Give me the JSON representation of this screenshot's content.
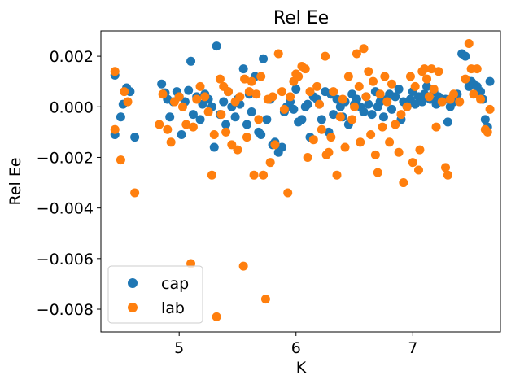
{
  "chart_data": {
    "type": "scatter",
    "title": "Rel Ee",
    "xlabel": "K",
    "ylabel": "Rel Ee",
    "xlim": [
      4.33,
      7.75
    ],
    "ylim": [
      -0.0089,
      0.003
    ],
    "xticks": [
      5,
      6,
      7
    ],
    "yticks": [
      0.002,
      0.0,
      -0.002,
      -0.004,
      -0.006,
      -0.008
    ],
    "xtick_labels": [
      "5",
      "6",
      "7"
    ],
    "ytick_labels": [
      "0.002",
      "0.000",
      "−0.002",
      "−0.004",
      "−0.006",
      "−0.008"
    ],
    "grid": false,
    "legend": "lower-left",
    "series": [
      {
        "name": "cap",
        "color": "#1f77b4",
        "points": [
          [
            4.45,
            0.00125
          ],
          [
            4.45,
            -0.0011
          ],
          [
            4.5,
            -0.0004
          ],
          [
            4.52,
            0.0001
          ],
          [
            4.55,
            0.00075
          ],
          [
            4.58,
            0.0006
          ],
          [
            4.62,
            -0.0012
          ],
          [
            4.85,
            0.0009
          ],
          [
            4.88,
            0.00055
          ],
          [
            4.9,
            0.0003
          ],
          [
            4.92,
            -0.0004
          ],
          [
            4.95,
            0.0002
          ],
          [
            4.98,
            0.0006
          ],
          [
            5.0,
            0.0004
          ],
          [
            5.02,
            -0.0011
          ],
          [
            5.05,
            0.0002
          ],
          [
            5.08,
            0.00065
          ],
          [
            5.1,
            0.0018
          ],
          [
            5.12,
            -0.0003
          ],
          [
            5.15,
            0.0004
          ],
          [
            5.18,
            -0.0005
          ],
          [
            5.2,
            0.0001
          ],
          [
            5.22,
            0.0005
          ],
          [
            5.25,
            0.0003
          ],
          [
            5.28,
            0.0
          ],
          [
            5.3,
            -0.0016
          ],
          [
            5.32,
            0.0024
          ],
          [
            5.35,
            -0.0003
          ],
          [
            5.38,
            0.0002
          ],
          [
            5.4,
            -0.0007
          ],
          [
            5.42,
            0.0006
          ],
          [
            5.45,
            0.0
          ],
          [
            5.48,
            -0.0004
          ],
          [
            5.5,
            0.0003
          ],
          [
            5.52,
            0.0001
          ],
          [
            5.55,
            0.0015
          ],
          [
            5.58,
            -0.0007
          ],
          [
            5.6,
            0.0005
          ],
          [
            5.62,
            -0.0002
          ],
          [
            5.65,
            0.0012
          ],
          [
            5.68,
            -0.001
          ],
          [
            5.7,
            -0.0011
          ],
          [
            5.72,
            0.0019
          ],
          [
            5.75,
            -0.0005
          ],
          [
            5.78,
            0.0003
          ],
          [
            5.8,
            -0.0015
          ],
          [
            5.82,
            -0.0014
          ],
          [
            5.85,
            -0.0018
          ],
          [
            5.88,
            -0.0016
          ],
          [
            5.9,
            -0.0002
          ],
          [
            5.92,
            0.0
          ],
          [
            5.95,
            0.0002
          ],
          [
            5.98,
            -0.0001
          ],
          [
            6.0,
            0.0007
          ],
          [
            6.02,
            -0.0006
          ],
          [
            6.05,
            -0.0005
          ],
          [
            6.08,
            0.0
          ],
          [
            6.1,
            0.0001
          ],
          [
            6.12,
            -0.0012
          ],
          [
            6.15,
            0.0004
          ],
          [
            6.18,
            0.0003
          ],
          [
            6.2,
            0.0001
          ],
          [
            6.22,
            -0.0005
          ],
          [
            6.25,
            0.0006
          ],
          [
            6.28,
            -0.001
          ],
          [
            6.3,
            0.0005
          ],
          [
            6.32,
            -0.0003
          ],
          [
            6.35,
            0.0003
          ],
          [
            6.38,
            0.0
          ],
          [
            6.4,
            -0.0004
          ],
          [
            6.42,
            0.0002
          ],
          [
            6.45,
            -0.0007
          ],
          [
            6.48,
            0.0005
          ],
          [
            6.5,
            0.0001
          ],
          [
            6.52,
            0.0003
          ],
          [
            6.55,
            0.0
          ],
          [
            6.58,
            -0.0002
          ],
          [
            6.6,
            0.0004
          ],
          [
            6.62,
            0.0001
          ],
          [
            6.65,
            -0.0003
          ],
          [
            6.68,
            0.0006
          ],
          [
            6.7,
            0.0
          ],
          [
            6.72,
            0.0002
          ],
          [
            6.75,
            -0.0004
          ],
          [
            6.78,
            0.0003
          ],
          [
            6.8,
            0.0005
          ],
          [
            6.82,
            -0.0001
          ],
          [
            6.85,
            0.0004
          ],
          [
            6.88,
            0.0007
          ],
          [
            6.9,
            -0.0005
          ],
          [
            6.92,
            0.0002
          ],
          [
            6.95,
            0.0
          ],
          [
            6.98,
            0.0003
          ],
          [
            7.0,
            0.0006
          ],
          [
            7.02,
            0.0001
          ],
          [
            7.05,
            0.0004
          ],
          [
            7.08,
            0.0002
          ],
          [
            7.1,
            0.0005
          ],
          [
            7.12,
            0.0008
          ],
          [
            7.15,
            0.0003
          ],
          [
            7.18,
            0.0006
          ],
          [
            7.2,
            0.0001
          ],
          [
            7.22,
            0.0004
          ],
          [
            7.25,
            0.0002
          ],
          [
            7.28,
            0.0003
          ],
          [
            7.3,
            -0.0006
          ],
          [
            7.32,
            0.0
          ],
          [
            7.35,
            0.0002
          ],
          [
            7.38,
            0.0005
          ],
          [
            7.42,
            0.0021
          ],
          [
            7.45,
            0.002
          ],
          [
            7.48,
            0.0008
          ],
          [
            7.5,
            0.001
          ],
          [
            7.52,
            0.0009
          ],
          [
            7.55,
            0.0008
          ],
          [
            7.58,
            0.0006
          ],
          [
            7.6,
            0.0003
          ],
          [
            7.62,
            -0.0005
          ],
          [
            7.64,
            -0.0008
          ],
          [
            7.66,
            0.001
          ]
        ]
      },
      {
        "name": "lab",
        "color": "#ff7f0e",
        "points": [
          [
            4.45,
            0.0014
          ],
          [
            4.45,
            -0.0009
          ],
          [
            4.5,
            -0.0021
          ],
          [
            4.53,
            0.0006
          ],
          [
            4.56,
            0.0002
          ],
          [
            4.62,
            -0.0034
          ],
          [
            4.83,
            -0.0007
          ],
          [
            4.86,
            0.0005
          ],
          [
            4.9,
            -0.0009
          ],
          [
            4.93,
            -0.0014
          ],
          [
            4.96,
            0.0002
          ],
          [
            5.0,
            0.0004
          ],
          [
            5.03,
            0.0
          ],
          [
            5.06,
            -0.0007
          ],
          [
            5.1,
            -0.0062
          ],
          [
            5.12,
            -0.0008
          ],
          [
            5.15,
            0.0003
          ],
          [
            5.18,
            0.0008
          ],
          [
            5.22,
            0.0004
          ],
          [
            5.25,
            -0.0002
          ],
          [
            5.28,
            -0.0027
          ],
          [
            5.3,
            -0.0011
          ],
          [
            5.32,
            -0.0083
          ],
          [
            5.35,
            0.0011
          ],
          [
            5.36,
            -0.0003
          ],
          [
            5.38,
            0.0008
          ],
          [
            5.4,
            -0.001
          ],
          [
            5.42,
            0.0006
          ],
          [
            5.45,
            -0.0015
          ],
          [
            5.48,
            0.0002
          ],
          [
            5.5,
            -0.0017
          ],
          [
            5.52,
            0.0004
          ],
          [
            5.55,
            -0.0063
          ],
          [
            5.56,
            0.0011
          ],
          [
            5.58,
            -0.0012
          ],
          [
            5.6,
            0.0006
          ],
          [
            5.62,
            0.001
          ],
          [
            5.64,
            -0.0027
          ],
          [
            5.66,
            0.0005
          ],
          [
            5.68,
            -0.0005
          ],
          [
            5.7,
            0.0012
          ],
          [
            5.72,
            -0.0027
          ],
          [
            5.74,
            -0.0076
          ],
          [
            5.76,
            0.0003
          ],
          [
            5.78,
            -0.0022
          ],
          [
            5.8,
            0.0004
          ],
          [
            5.82,
            -0.0015
          ],
          [
            5.85,
            0.0021
          ],
          [
            5.88,
            0.0006
          ],
          [
            5.9,
            -0.0001
          ],
          [
            5.93,
            -0.0034
          ],
          [
            5.95,
            0.0004
          ],
          [
            5.98,
            0.001
          ],
          [
            6.0,
            0.0013
          ],
          [
            6.02,
            0.0012
          ],
          [
            6.05,
            0.0016
          ],
          [
            6.08,
            0.0015
          ],
          [
            6.1,
            -0.002
          ],
          [
            6.12,
            0.0006
          ],
          [
            6.15,
            -0.0013
          ],
          [
            6.18,
            0.0008
          ],
          [
            6.2,
            0.0001
          ],
          [
            6.22,
            -0.0009
          ],
          [
            6.25,
            0.002
          ],
          [
            6.26,
            -0.0019
          ],
          [
            6.28,
            -0.0018
          ],
          [
            6.3,
            -0.0012
          ],
          [
            6.32,
            0.0006
          ],
          [
            6.35,
            -0.0027
          ],
          [
            6.38,
            -0.0004
          ],
          [
            6.4,
            0.0003
          ],
          [
            6.42,
            -0.0016
          ],
          [
            6.45,
            0.0012
          ],
          [
            6.48,
            -0.0005
          ],
          [
            6.5,
            0.0
          ],
          [
            6.52,
            0.0021
          ],
          [
            6.54,
            0.0008
          ],
          [
            6.55,
            -0.0014
          ],
          [
            6.58,
            0.0023
          ],
          [
            6.6,
            0.0004
          ],
          [
            6.62,
            0.0014
          ],
          [
            6.64,
            -0.0011
          ],
          [
            6.66,
            0.001
          ],
          [
            6.68,
            -0.0019
          ],
          [
            6.7,
            -0.0026
          ],
          [
            6.72,
            0.0005
          ],
          [
            6.74,
            -0.0008
          ],
          [
            6.76,
            0.0012
          ],
          [
            6.78,
            0.0002
          ],
          [
            6.8,
            -0.0014
          ],
          [
            6.82,
            0.0009
          ],
          [
            6.85,
            -0.0007
          ],
          [
            6.88,
            -0.0018
          ],
          [
            6.9,
            -0.0003
          ],
          [
            6.92,
            -0.003
          ],
          [
            6.95,
            0.0
          ],
          [
            6.98,
            0.0012
          ],
          [
            7.0,
            -0.0022
          ],
          [
            7.02,
            0.0008
          ],
          [
            7.05,
            -0.0025
          ],
          [
            7.06,
            -0.0017
          ],
          [
            7.08,
            0.0014
          ],
          [
            7.1,
            0.0015
          ],
          [
            7.12,
            0.0011
          ],
          [
            7.14,
            0.0004
          ],
          [
            7.16,
            0.0015
          ],
          [
            7.18,
            0.0007
          ],
          [
            7.2,
            -0.0008
          ],
          [
            7.22,
            0.0014
          ],
          [
            7.25,
            0.0002
          ],
          [
            7.28,
            -0.0024
          ],
          [
            7.3,
            -0.0027
          ],
          [
            7.32,
            0.0003
          ],
          [
            7.35,
            0.0005
          ],
          [
            7.4,
            0.0002
          ],
          [
            7.45,
            0.0011
          ],
          [
            7.48,
            0.0025
          ],
          [
            7.5,
            0.0015
          ],
          [
            7.52,
            0.0005
          ],
          [
            7.55,
            0.0015
          ],
          [
            7.58,
            0.0003
          ],
          [
            7.62,
            -0.0009
          ],
          [
            7.64,
            -0.001
          ],
          [
            7.66,
            -0.0001
          ]
        ]
      }
    ]
  }
}
